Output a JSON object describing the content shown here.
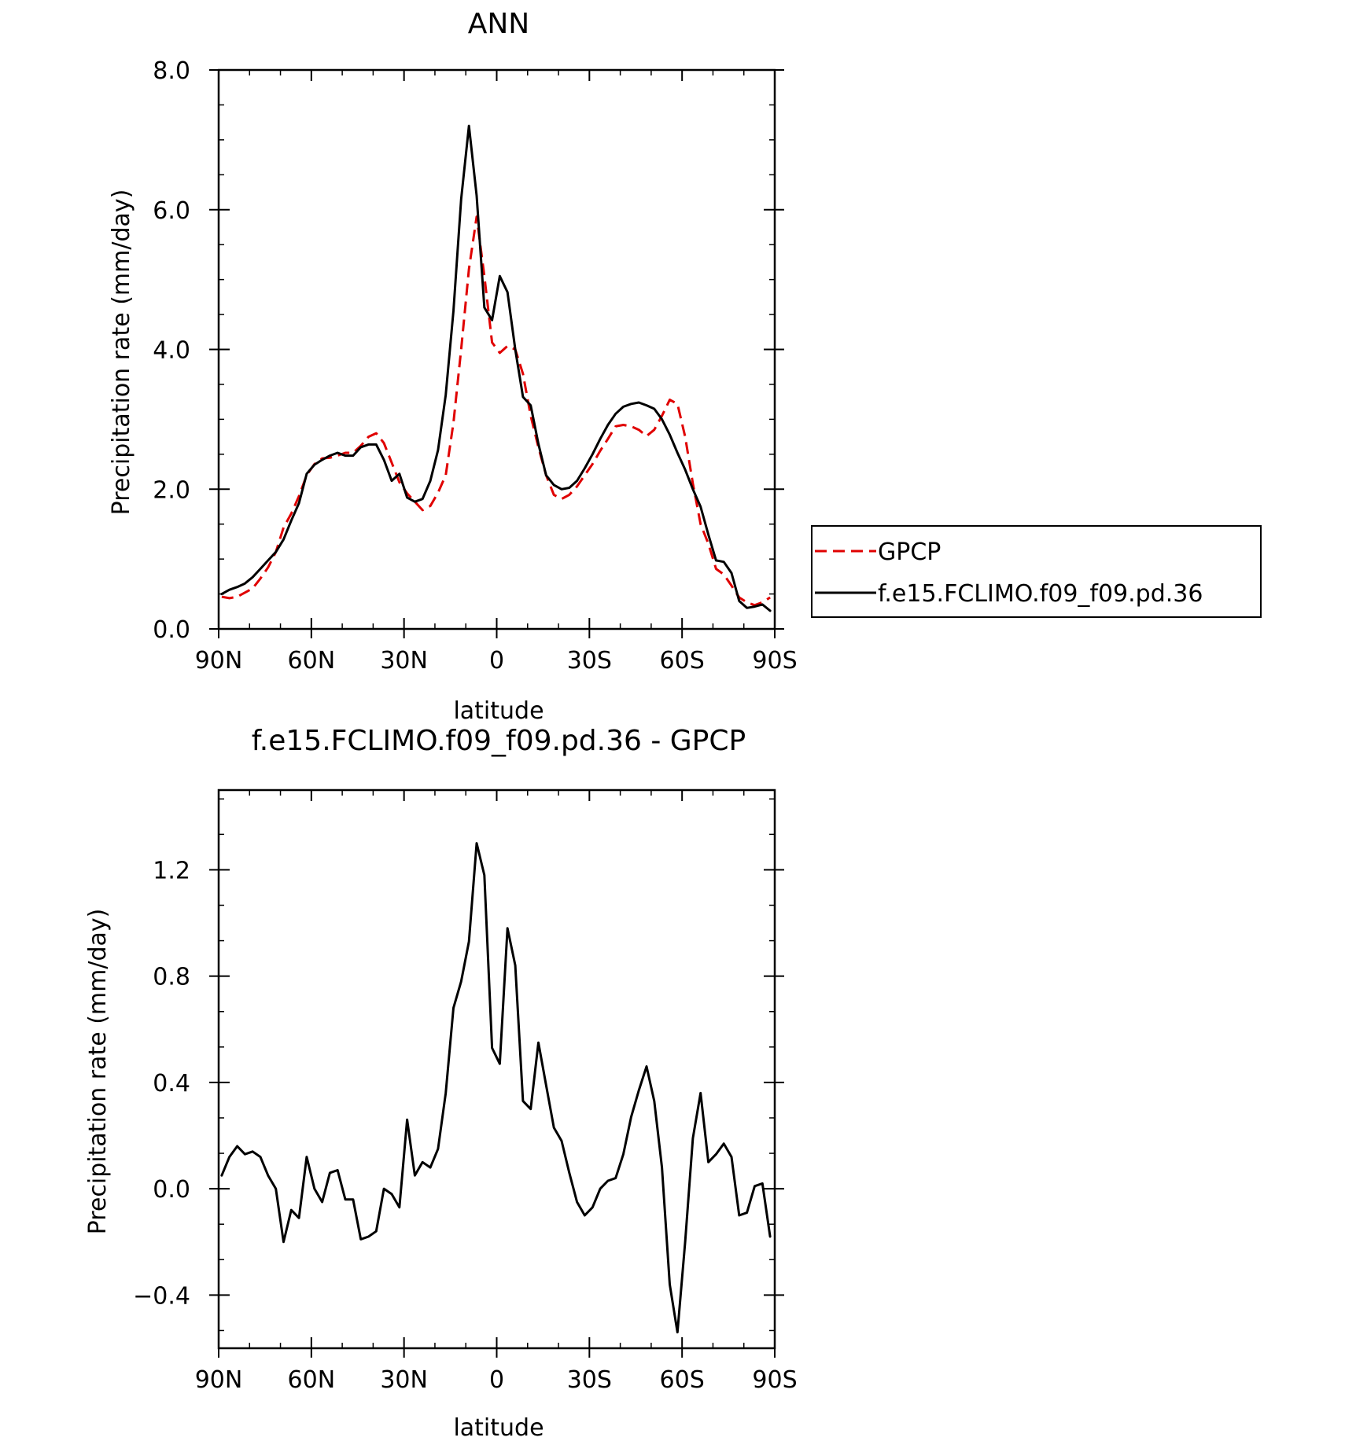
{
  "chart_data": [
    {
      "type": "line",
      "title": "ANN",
      "xlabel": "latitude",
      "ylabel": "Precipitation rate (mm/day)",
      "xlim": [
        90,
        -90
      ],
      "ylim": [
        0,
        8
      ],
      "x_ticks": [
        90,
        60,
        30,
        0,
        -30,
        -60,
        -90
      ],
      "x_tick_labels": [
        "90N",
        "60N",
        "30N",
        "0",
        "30S",
        "60S",
        "90S"
      ],
      "y_ticks": [
        0,
        2,
        4,
        6,
        8
      ],
      "y_tick_labels": [
        "0.0",
        "2.0",
        "4.0",
        "6.0",
        "8.0"
      ],
      "legend_position": "right",
      "x": [
        89.0,
        86.5,
        84.0,
        81.5,
        79.0,
        76.5,
        74.0,
        71.5,
        69.0,
        66.5,
        64.0,
        61.5,
        59.0,
        56.5,
        54.0,
        51.5,
        49.0,
        46.5,
        44.0,
        41.5,
        39.0,
        36.5,
        34.0,
        31.5,
        29.0,
        26.5,
        24.0,
        21.5,
        19.0,
        16.5,
        14.0,
        11.5,
        9.0,
        6.5,
        4.0,
        1.5,
        -1.0,
        -3.5,
        -6.0,
        -8.5,
        -11.0,
        -13.5,
        -16.0,
        -18.5,
        -21.0,
        -23.5,
        -26.0,
        -28.5,
        -31.0,
        -33.5,
        -36.0,
        -38.5,
        -41.0,
        -43.5,
        -46.0,
        -48.5,
        -51.0,
        -53.5,
        -56.0,
        -58.5,
        -61.0,
        -63.5,
        -66.0,
        -68.5,
        -71.0,
        -73.5,
        -76.0,
        -78.5,
        -81.0,
        -83.5,
        -86.0,
        -88.5
      ],
      "series": [
        {
          "name": "GPCP",
          "color": "#e00000",
          "dash": "dashed",
          "values": [
            0.46,
            0.44,
            0.46,
            0.52,
            0.58,
            0.72,
            0.88,
            1.1,
            1.45,
            1.65,
            1.9,
            2.2,
            2.36,
            2.44,
            2.45,
            2.48,
            2.52,
            2.52,
            2.62,
            2.75,
            2.8,
            2.66,
            2.38,
            2.1,
            1.94,
            1.82,
            1.7,
            1.76,
            1.95,
            2.2,
            2.95,
            4.0,
            5.15,
            5.9,
            5.05,
            4.1,
            3.95,
            4.05,
            4.0,
            3.65,
            3.05,
            2.6,
            2.2,
            1.92,
            1.86,
            1.92,
            2.04,
            2.2,
            2.36,
            2.55,
            2.72,
            2.9,
            2.92,
            2.9,
            2.85,
            2.76,
            2.85,
            3.05,
            3.28,
            3.22,
            2.75,
            2.08,
            1.5,
            1.22,
            0.86,
            0.78,
            0.62,
            0.45,
            0.38,
            0.34,
            0.38,
            0.45
          ]
        },
        {
          "name": "f.e15.FCLIMO.f09_f09.pd.36",
          "color": "#000000",
          "dash": "solid",
          "values": [
            0.5,
            0.56,
            0.6,
            0.65,
            0.74,
            0.86,
            0.98,
            1.1,
            1.28,
            1.55,
            1.8,
            2.22,
            2.35,
            2.42,
            2.48,
            2.52,
            2.48,
            2.48,
            2.6,
            2.64,
            2.64,
            2.42,
            2.12,
            2.22,
            1.88,
            1.82,
            1.86,
            2.12,
            2.56,
            3.35,
            4.55,
            6.15,
            7.2,
            6.2,
            4.6,
            4.42,
            5.05,
            4.82,
            4.0,
            3.32,
            3.2,
            2.65,
            2.2,
            2.06,
            2.0,
            2.02,
            2.12,
            2.3,
            2.5,
            2.72,
            2.92,
            3.08,
            3.18,
            3.22,
            3.24,
            3.2,
            3.15,
            3.0,
            2.78,
            2.52,
            2.28,
            2.0,
            1.75,
            1.35,
            0.98,
            0.96,
            0.8,
            0.4,
            0.3,
            0.32,
            0.35,
            0.26
          ]
        }
      ]
    },
    {
      "type": "line",
      "title": "f.e15.FCLIMO.f09_f09.pd.36 - GPCP",
      "xlabel": "latitude",
      "ylabel": "Precipitation rate (mm/day)",
      "xlim": [
        90,
        -90
      ],
      "ylim": [
        -0.6,
        1.5
      ],
      "x_ticks": [
        90,
        60,
        30,
        0,
        -30,
        -60,
        -90
      ],
      "x_tick_labels": [
        "90N",
        "60N",
        "30N",
        "0",
        "30S",
        "60S",
        "90S"
      ],
      "y_ticks": [
        -0.4,
        0.0,
        0.4,
        0.8,
        1.2
      ],
      "y_tick_labels": [
        "−0.4",
        "0.0",
        "0.4",
        "0.8",
        "1.2"
      ],
      "x": [
        89.0,
        86.5,
        84.0,
        81.5,
        79.0,
        76.5,
        74.0,
        71.5,
        69.0,
        66.5,
        64.0,
        61.5,
        59.0,
        56.5,
        54.0,
        51.5,
        49.0,
        46.5,
        44.0,
        41.5,
        39.0,
        36.5,
        34.0,
        31.5,
        29.0,
        26.5,
        24.0,
        21.5,
        19.0,
        16.5,
        14.0,
        11.5,
        9.0,
        6.5,
        4.0,
        1.5,
        -1.0,
        -3.5,
        -6.0,
        -8.5,
        -11.0,
        -13.5,
        -16.0,
        -18.5,
        -21.0,
        -23.5,
        -26.0,
        -28.5,
        -31.0,
        -33.5,
        -36.0,
        -38.5,
        -41.0,
        -43.5,
        -46.0,
        -48.5,
        -51.0,
        -53.5,
        -56.0,
        -58.5,
        -61.0,
        -63.5,
        -66.0,
        -68.5,
        -71.0,
        -73.5,
        -76.0,
        -78.5,
        -81.0,
        -83.5,
        -86.0,
        -88.5
      ],
      "series": [
        {
          "color": "#000000",
          "dash": "solid",
          "values": [
            0.05,
            0.12,
            0.16,
            0.13,
            0.14,
            0.12,
            0.05,
            0.0,
            -0.2,
            -0.08,
            -0.11,
            0.12,
            0.0,
            -0.05,
            0.06,
            0.07,
            -0.04,
            -0.04,
            -0.19,
            -0.18,
            -0.16,
            0.0,
            -0.02,
            -0.07,
            0.26,
            0.05,
            0.1,
            0.08,
            0.15,
            0.36,
            0.68,
            0.78,
            0.93,
            1.3,
            1.18,
            0.53,
            0.47,
            0.98,
            0.84,
            0.33,
            0.3,
            0.55,
            0.39,
            0.23,
            0.18,
            0.06,
            -0.05,
            -0.1,
            -0.07,
            0.0,
            0.03,
            0.04,
            0.13,
            0.27,
            0.37,
            0.46,
            0.33,
            0.08,
            -0.36,
            -0.54,
            -0.2,
            0.19,
            0.36,
            0.1,
            0.13,
            0.17,
            0.12,
            -0.1,
            -0.09,
            0.01,
            0.02,
            -0.18
          ]
        }
      ]
    }
  ]
}
